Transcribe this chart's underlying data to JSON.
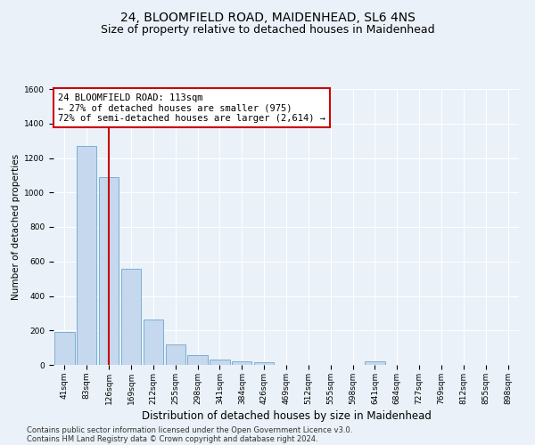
{
  "title": "24, BLOOMFIELD ROAD, MAIDENHEAD, SL6 4NS",
  "subtitle": "Size of property relative to detached houses in Maidenhead",
  "xlabel": "Distribution of detached houses by size in Maidenhead",
  "ylabel": "Number of detached properties",
  "categories": [
    "41sqm",
    "83sqm",
    "126sqm",
    "169sqm",
    "212sqm",
    "255sqm",
    "298sqm",
    "341sqm",
    "384sqm",
    "426sqm",
    "469sqm",
    "512sqm",
    "555sqm",
    "598sqm",
    "641sqm",
    "684sqm",
    "727sqm",
    "769sqm",
    "812sqm",
    "855sqm",
    "898sqm"
  ],
  "values": [
    190,
    1270,
    1090,
    555,
    265,
    120,
    55,
    30,
    20,
    15,
    0,
    0,
    0,
    0,
    20,
    0,
    0,
    0,
    0,
    0,
    0
  ],
  "bar_color": "#c5d8ed",
  "bar_edge_color": "#7bafd4",
  "vline_x_idx": 2,
  "vline_color": "#cc0000",
  "annotation_line1": "24 BLOOMFIELD ROAD: 113sqm",
  "annotation_line2": "← 27% of detached houses are smaller (975)",
  "annotation_line3": "72% of semi-detached houses are larger (2,614) →",
  "annotation_box_color": "#ffffff",
  "annotation_box_edge_color": "#cc0000",
  "ylim": [
    0,
    1600
  ],
  "yticks": [
    0,
    200,
    400,
    600,
    800,
    1000,
    1200,
    1400,
    1600
  ],
  "footnote_line1": "Contains HM Land Registry data © Crown copyright and database right 2024.",
  "footnote_line2": "Contains public sector information licensed under the Open Government Licence v3.0.",
  "background_color": "#eaf1f8",
  "plot_background": "#eaf1f8",
  "grid_color": "#ffffff",
  "title_fontsize": 10,
  "subtitle_fontsize": 9,
  "xlabel_fontsize": 8.5,
  "ylabel_fontsize": 7.5,
  "tick_fontsize": 6.5,
  "annotation_fontsize": 7.5,
  "footnote_fontsize": 6
}
